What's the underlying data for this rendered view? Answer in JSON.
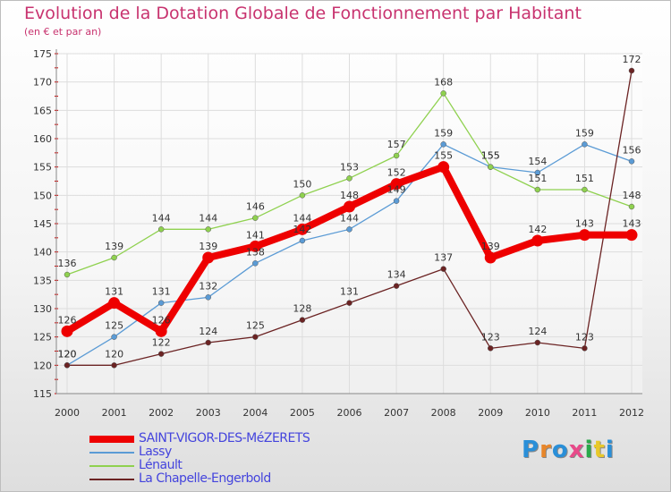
{
  "header": {
    "title": "Evolution de la Dotation Globale de Fonctionnement par Habitant",
    "subtitle": "(en € et par an)"
  },
  "logo": {
    "text": "Proxiti",
    "colors": [
      "#2a8fd8",
      "#e8862a",
      "#2a8fd8",
      "#e84a8a",
      "#2aa84a",
      "#e8c82a",
      "#2a8fd8"
    ]
  },
  "chart_data": {
    "type": "line",
    "title": "Evolution de la Dotation Globale de Fonctionnement par Habitant",
    "subtitle": "(en € et par an)",
    "xlabel": "",
    "ylabel": "",
    "ylim": [
      115,
      175
    ],
    "yticks": [
      115,
      120,
      125,
      130,
      135,
      140,
      145,
      150,
      155,
      160,
      165,
      170,
      175
    ],
    "categories": [
      "2000",
      "2001",
      "2002",
      "2003",
      "2004",
      "2005",
      "2006",
      "2007",
      "2008",
      "2009",
      "2010",
      "2011",
      "2012"
    ],
    "grid": true,
    "legend_position": "bottom-left",
    "series": [
      {
        "name": "SAINT-VIGOR-DES-MéZERETS",
        "color": "#ee0000",
        "emphasis": true,
        "values": [
          126,
          131,
          126,
          139,
          141,
          144,
          148,
          152,
          155,
          139,
          142,
          143,
          143
        ],
        "labels": [
          "126",
          "131",
          "126",
          "139",
          "141",
          "144",
          "148",
          "152",
          "155",
          "139",
          "142",
          "143",
          "143"
        ]
      },
      {
        "name": "Lassy",
        "color": "#5b9bd5",
        "values": [
          120,
          125,
          131,
          132,
          138,
          142,
          144,
          149,
          159,
          155,
          154,
          159,
          156
        ],
        "labels": [
          "120",
          "125",
          "131",
          "132",
          "138",
          "142",
          "144",
          "149",
          "159",
          "155",
          "154",
          "159",
          "156"
        ]
      },
      {
        "name": "Lénault",
        "color": "#8fd14f",
        "values": [
          136,
          139,
          144,
          144,
          146,
          150,
          153,
          157,
          168,
          155,
          151,
          151,
          148
        ],
        "labels": [
          "136",
          "139",
          "144",
          "144",
          "146",
          "150",
          "153",
          "157",
          "168",
          "155",
          "151",
          "151",
          "148"
        ]
      },
      {
        "name": "La Chapelle-Engerbold",
        "color": "#6b2323",
        "values": [
          120,
          120,
          122,
          124,
          125,
          128,
          131,
          134,
          137,
          123,
          124,
          123,
          172
        ],
        "labels": [
          "120",
          "120",
          "122",
          "124",
          "125",
          "128",
          "131",
          "134",
          "137",
          "123",
          "124",
          "123",
          "172"
        ]
      }
    ]
  }
}
